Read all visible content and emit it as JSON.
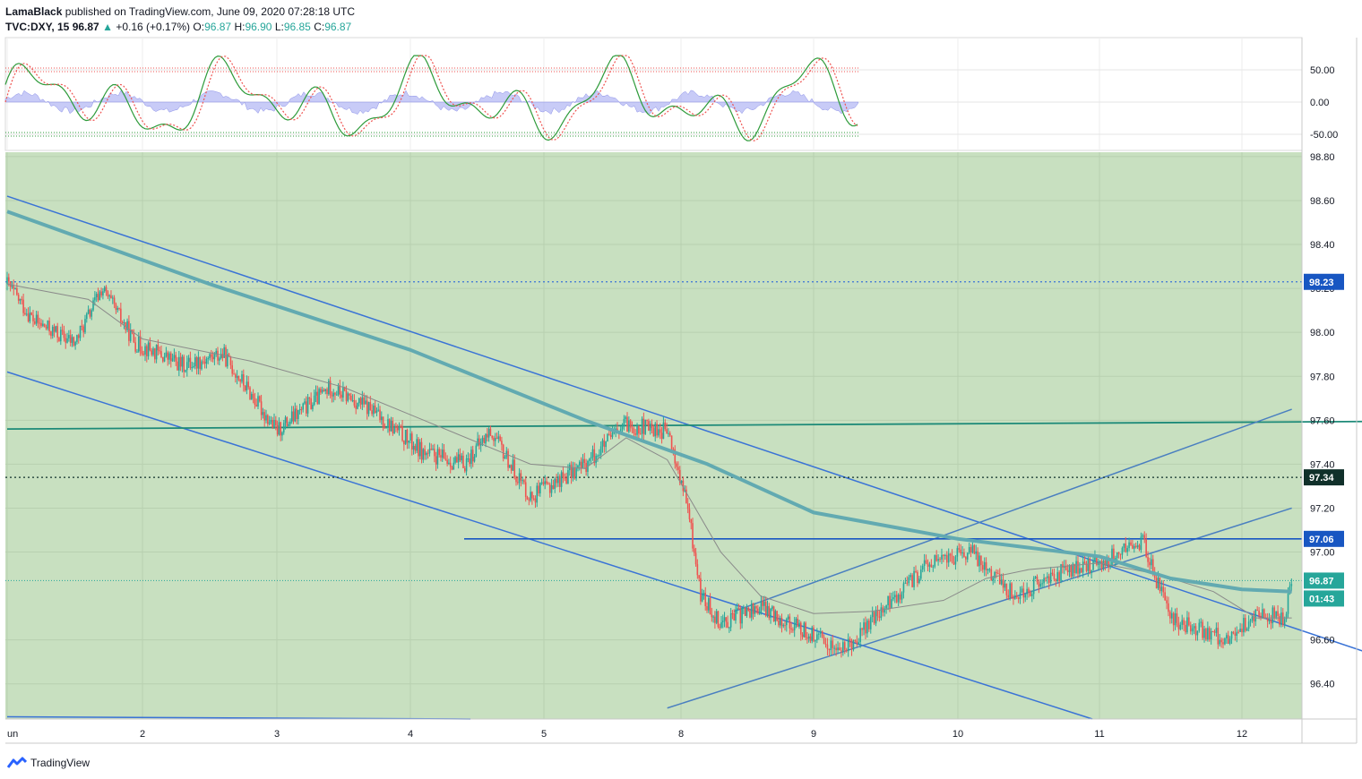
{
  "header": {
    "author": "LamaBlack",
    "published_text": " published on TradingView.com, June 09, 2020 07:28:18 UTC"
  },
  "symbol": {
    "name": "TVC:DXY, 15",
    "last": "96.87",
    "change_arrow": "▲",
    "change": "+0.16 (+0.17%)",
    "o_label": "O:",
    "o": "96.87",
    "h_label": "H:",
    "h": "96.90",
    "l_label": "L:",
    "l": "96.85",
    "c_label": "C:",
    "c": "96.87"
  },
  "footer": {
    "brand": "TradingView",
    "logo_icon": "tradingview-logo-icon"
  },
  "colors": {
    "bg_zone": "#c8e0c0",
    "up": "#26a69a",
    "down": "#ef5350",
    "channel": "#3a73d6",
    "ma_thick": "#62aab1",
    "ma_thin": "#8a8a8a",
    "hline": "#1856c2",
    "teal_line": "#1d8a78",
    "tag_blue": "#1856c2",
    "tag_dark": "#10302a",
    "tag_green": "#26a69a"
  },
  "chart_data": [
    {
      "type": "line",
      "title": "",
      "panel": "oscillator",
      "y_ticks": [
        "50.00",
        "0.00",
        "-50.00"
      ],
      "ylim": [
        -75,
        100
      ],
      "overbought": 50,
      "oversold": -50,
      "grid": true
    },
    {
      "type": "candlestick",
      "title": "",
      "panel": "price",
      "x_tick_labels": [
        "un",
        "2",
        "3",
        "4",
        "5",
        "8",
        "9",
        "10",
        "11",
        "12"
      ],
      "y_ticks": [
        "98.80",
        "98.60",
        "98.40",
        "98.20",
        "98.00",
        "97.80",
        "97.60",
        "97.40",
        "97.20",
        "97.00",
        "96.60",
        "96.40"
      ],
      "ylim": [
        96.24,
        98.82
      ],
      "price_path": [
        [
          0,
          98.22
        ],
        [
          0.2,
          98.05
        ],
        [
          0.5,
          97.95
        ],
        [
          0.7,
          98.2
        ],
        [
          0.95,
          97.95
        ],
        [
          1.3,
          97.85
        ],
        [
          1.6,
          97.9
        ],
        [
          2.0,
          97.55
        ],
        [
          2.4,
          97.75
        ],
        [
          2.7,
          97.65
        ],
        [
          3.1,
          97.45
        ],
        [
          3.4,
          97.4
        ],
        [
          3.6,
          97.55
        ],
        [
          3.9,
          97.25
        ],
        [
          4.3,
          97.4
        ],
        [
          4.6,
          97.58
        ],
        [
          4.9,
          97.55
        ],
        [
          5.05,
          97.2
        ],
        [
          5.15,
          96.8
        ],
        [
          5.3,
          96.68
        ],
        [
          5.6,
          96.75
        ],
        [
          5.9,
          96.65
        ],
        [
          6.2,
          96.55
        ],
        [
          6.5,
          96.75
        ],
        [
          6.8,
          96.95
        ],
        [
          7.1,
          97.0
        ],
        [
          7.4,
          96.8
        ],
        [
          7.7,
          96.9
        ],
        [
          8.0,
          96.95
        ],
        [
          8.3,
          97.05
        ],
        [
          8.5,
          96.7
        ],
        [
          8.7,
          96.65
        ],
        [
          8.9,
          96.6
        ],
        [
          9.1,
          96.72
        ],
        [
          9.3,
          96.7
        ],
        [
          9.35,
          96.87
        ]
      ],
      "ma_thick_path": [
        [
          0,
          98.55
        ],
        [
          1.5,
          98.22
        ],
        [
          3.0,
          97.92
        ],
        [
          4.3,
          97.6
        ],
        [
          5.2,
          97.4
        ],
        [
          6.0,
          97.18
        ],
        [
          7.0,
          97.06
        ],
        [
          8.0,
          96.98
        ],
        [
          8.5,
          96.88
        ],
        [
          9.0,
          96.83
        ],
        [
          9.35,
          96.82
        ]
      ],
      "ma_thin_path": [
        [
          0,
          98.22
        ],
        [
          0.6,
          98.15
        ],
        [
          1.0,
          97.97
        ],
        [
          1.8,
          97.87
        ],
        [
          2.5,
          97.75
        ],
        [
          3.1,
          97.6
        ],
        [
          3.9,
          97.4
        ],
        [
          4.3,
          97.38
        ],
        [
          4.6,
          97.52
        ],
        [
          4.9,
          97.42
        ],
        [
          5.3,
          97.0
        ],
        [
          5.6,
          96.8
        ],
        [
          6.0,
          96.72
        ],
        [
          6.4,
          96.73
        ],
        [
          6.9,
          96.78
        ],
        [
          7.2,
          96.88
        ],
        [
          7.5,
          96.92
        ],
        [
          8.0,
          96.95
        ],
        [
          8.4,
          96.9
        ],
        [
          8.8,
          96.82
        ],
        [
          9.1,
          96.7
        ],
        [
          9.35,
          96.7
        ]
      ],
      "levels": [
        {
          "name": "resistance-dotted",
          "value": 98.23,
          "tag": "98.23",
          "style": "dotted"
        },
        {
          "name": "mid-dotted",
          "value": 97.34,
          "tag": "97.34",
          "style": "dotted-dark"
        },
        {
          "name": "breakout-level",
          "value": 97.06,
          "tag": "97.06",
          "style": "solid"
        },
        {
          "name": "last-price",
          "value": 96.87,
          "tag": "96.87",
          "style": "dotted-green"
        }
      ],
      "countdown_tag": "01:43",
      "trendlines": [
        {
          "name": "descending-channel-upper",
          "from": [
            0,
            98.62
          ],
          "to": [
            10.35,
            96.44
          ]
        },
        {
          "name": "descending-channel-lower",
          "from": [
            0,
            97.82
          ],
          "to": [
            7.95,
            96.24
          ]
        },
        {
          "name": "horizontal-teal-trend",
          "from": [
            0,
            97.56
          ],
          "to": [
            14.3,
            97.61
          ]
        },
        {
          "name": "ascending-channel-upper",
          "from": [
            5.4,
            96.73
          ],
          "to": [
            9.35,
            97.65
          ]
        },
        {
          "name": "ascending-channel-lower",
          "from": [
            4.9,
            96.29
          ],
          "to": [
            9.35,
            97.2
          ]
        },
        {
          "name": "bottom-edge-line",
          "from": [
            0,
            96.25
          ],
          "to": [
            3.45,
            96.24
          ]
        }
      ]
    }
  ]
}
